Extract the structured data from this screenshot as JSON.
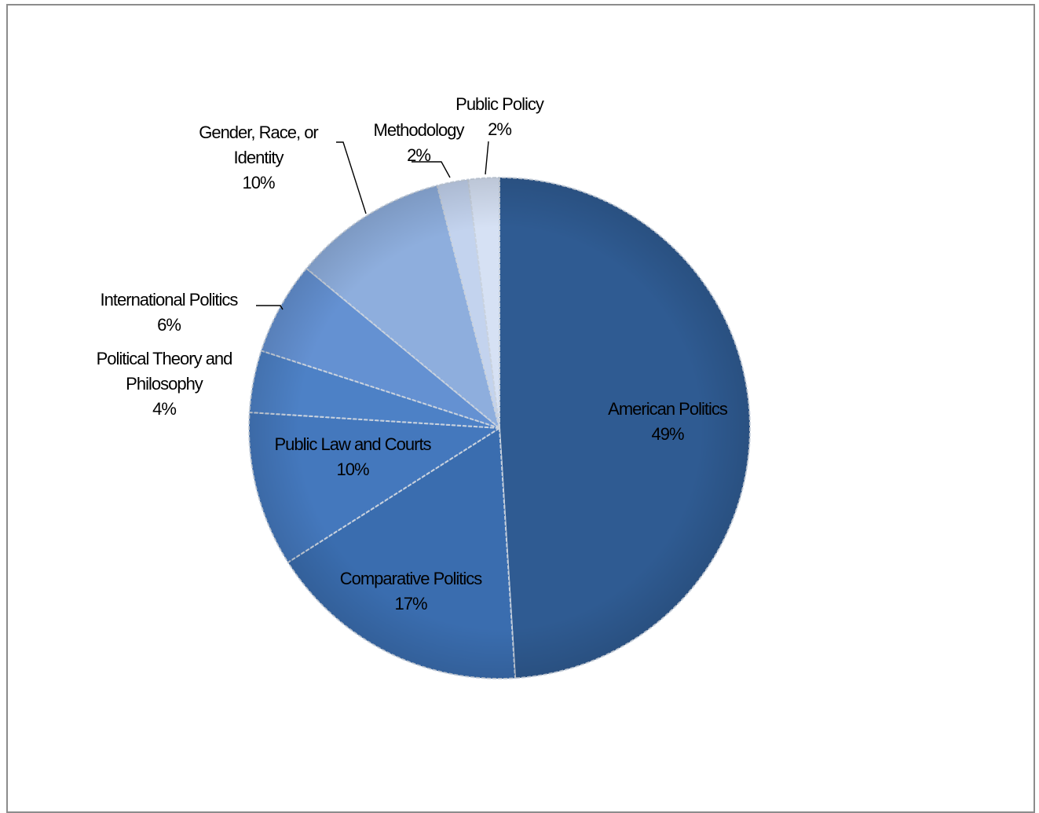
{
  "chart_data": {
    "type": "pie",
    "title": "",
    "categories": [
      "American Politics",
      "Comparative Politics",
      "Public Law and Courts",
      "Political Theory and Philosophy",
      "International Politics",
      "Gender, Race, or Identity",
      "Methodology",
      "Public Policy"
    ],
    "label_lines": [
      [
        "American Politics",
        "49%"
      ],
      [
        "Comparative Politics",
        "17%"
      ],
      [
        "Public Law and Courts",
        "10%"
      ],
      [
        "Political Theory and",
        "Philosophy",
        "4%"
      ],
      [
        "International Politics",
        "6%"
      ],
      [
        "Gender, Race, or",
        "Identity",
        "10%"
      ],
      [
        "Methodology",
        "2%"
      ],
      [
        "Public Policy",
        "2%"
      ]
    ],
    "values": [
      49,
      17,
      10,
      4,
      6,
      10,
      2,
      2
    ],
    "colors": [
      "#2f5b92",
      "#3a6daf",
      "#4478bd",
      "#4d81c6",
      "#6491d2",
      "#8eaedd",
      "#c3d3ee",
      "#d6e1f4"
    ],
    "legend": "none",
    "label_position": "on slices and outside with leader lines"
  }
}
